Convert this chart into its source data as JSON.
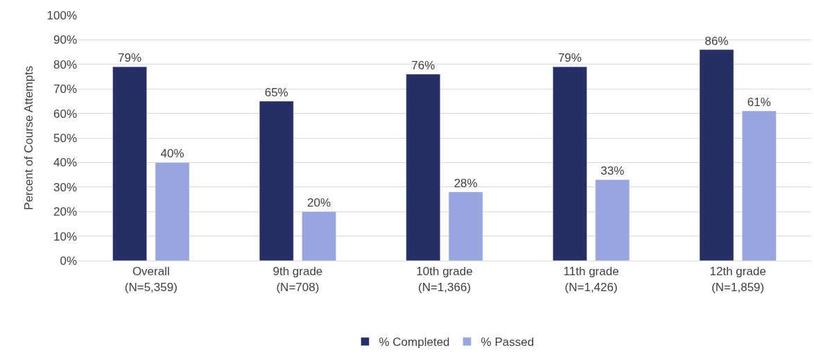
{
  "chart_data": {
    "type": "bar",
    "ylabel": "Percent of Course Attempts",
    "categories": [
      "Overall\n(N=5,359)",
      "9th grade\n(N=708)",
      "10th grade\n(N=1,366)",
      "11th grade\n(N=1,426)",
      "12th grade\n(N=1,859)"
    ],
    "series": [
      {
        "name": "% Completed",
        "color": "#252f66",
        "values": [
          79,
          65,
          76,
          79,
          86
        ],
        "value_labels": [
          "79%",
          "65%",
          "76%",
          "79%",
          "86%"
        ]
      },
      {
        "name": "% Passed",
        "color": "#98a5de",
        "values": [
          40,
          20,
          28,
          33,
          61
        ],
        "value_labels": [
          "40%",
          "20%",
          "28%",
          "33%",
          "61%"
        ]
      }
    ],
    "ylim": [
      0,
      100
    ],
    "yticks": [
      {
        "value": 0,
        "label": "0%"
      },
      {
        "value": 10,
        "label": "10%"
      },
      {
        "value": 20,
        "label": "20%"
      },
      {
        "value": 30,
        "label": "30%"
      },
      {
        "value": 40,
        "label": "40%"
      },
      {
        "value": 50,
        "label": "50%"
      },
      {
        "value": 60,
        "label": "60%"
      },
      {
        "value": 70,
        "label": "70%"
      },
      {
        "value": 80,
        "label": "80%"
      },
      {
        "value": 90,
        "label": "90%"
      },
      {
        "value": 100,
        "label": "100%"
      }
    ],
    "grid": "y",
    "legend": "bottom"
  }
}
